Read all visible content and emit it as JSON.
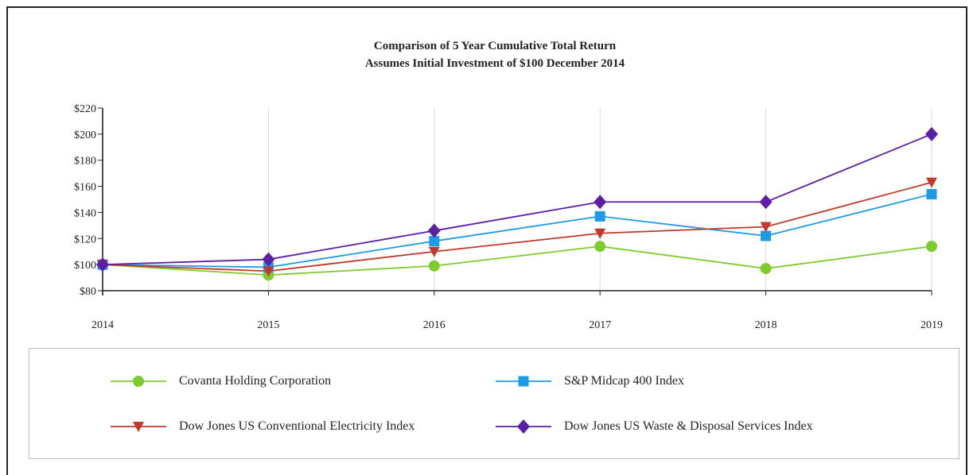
{
  "chart_data": {
    "type": "line",
    "title": "Comparison of 5 Year Cumulative Total Return",
    "subtitle": "Assumes Initial Investment of $100 December 2014",
    "xlabel": "",
    "ylabel": "",
    "x": [
      "2014",
      "2015",
      "2016",
      "2017",
      "2018",
      "2019"
    ],
    "ylim": [
      80,
      220
    ],
    "yticks": [
      80,
      100,
      120,
      140,
      160,
      180,
      200,
      220
    ],
    "ytick_labels": [
      "$80",
      "$100",
      "$120",
      "$140",
      "$160",
      "$180",
      "$200",
      "$220"
    ],
    "grid": "vertical",
    "legend_position": "bottom",
    "series": [
      {
        "name": "Covanta Holding Corporation",
        "color": "#7dcc2e",
        "marker": "circle",
        "values": [
          100,
          92,
          99,
          114,
          97,
          114
        ]
      },
      {
        "name": "S&P Midcap 400 Index",
        "color": "#1e9be6",
        "marker": "square",
        "values": [
          100,
          98,
          118,
          137,
          122,
          154
        ]
      },
      {
        "name": "Dow Jones US Conventional Electricity Index",
        "color": "#c0392b",
        "marker": "triangle-down",
        "values": [
          100,
          95,
          110,
          124,
          129,
          163
        ]
      },
      {
        "name": "Dow Jones US Waste & Disposal Services Index",
        "color": "#5b1fa6",
        "marker": "diamond",
        "values": [
          100,
          104,
          126,
          148,
          148,
          200
        ]
      }
    ]
  }
}
